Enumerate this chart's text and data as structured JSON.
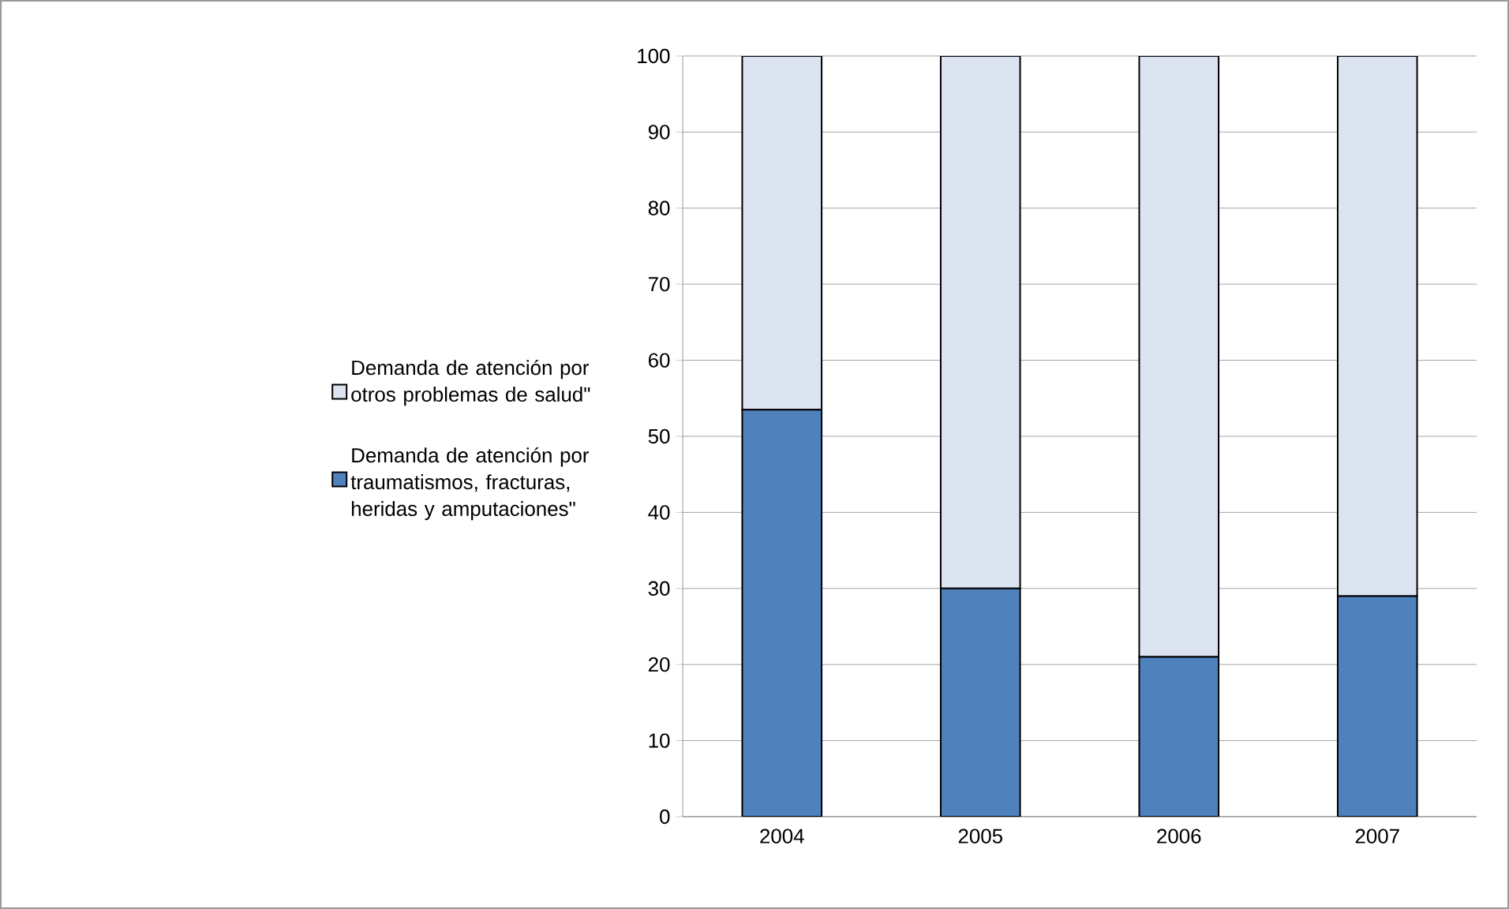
{
  "chart_data": {
    "type": "bar",
    "stacked": true,
    "categories": [
      "2004",
      "2005",
      "2006",
      "2007"
    ],
    "series": [
      {
        "name": "Demanda de atención por traumatismos,  fracturas, heridas y amputaciones\"",
        "color": "#4f81bd",
        "values": [
          53.5,
          30,
          21,
          29
        ]
      },
      {
        "name": "Demanda de atención por otros problemas de salud\"",
        "color": "#dce4f2",
        "values": [
          46.5,
          70,
          79,
          71
        ]
      }
    ],
    "ylim": [
      0,
      100
    ],
    "yticks": [
      0,
      10,
      20,
      30,
      40,
      50,
      60,
      70,
      80,
      90,
      100
    ],
    "grid": "y",
    "legend": "left"
  }
}
